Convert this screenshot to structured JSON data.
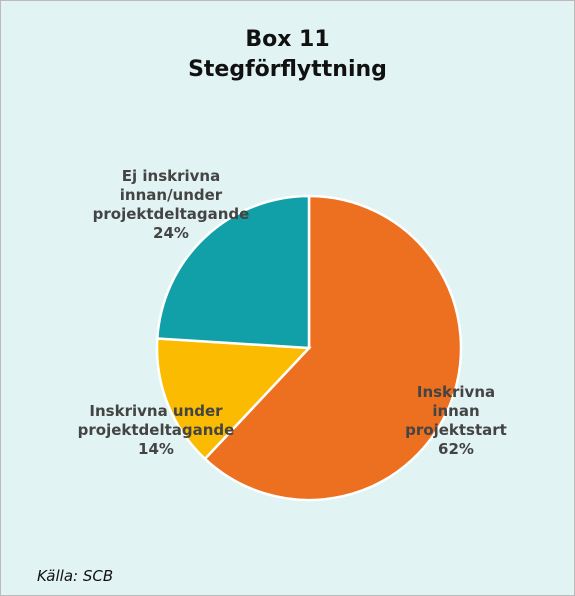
{
  "chart_data": {
    "type": "pie",
    "title": "Box 11",
    "subtitle": "Stegförflyttning",
    "categories": [
      "Inskrivna innan projektstart",
      "Inskrivna under projektdeltagande",
      "Ej inskrivna innan/under projektdeltagande"
    ],
    "values": [
      62,
      14,
      24
    ],
    "value_labels": [
      "62%",
      "14%",
      "24%"
    ],
    "colors": [
      "#ec701f",
      "#fbbb00",
      "#12a0a8"
    ],
    "source": "Källa: SCB"
  }
}
